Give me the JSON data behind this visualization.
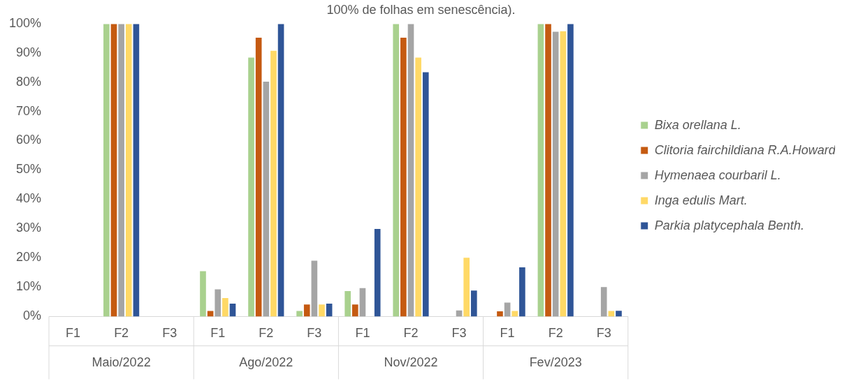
{
  "chart_data": {
    "type": "bar",
    "title": "100% de folhas em senescência).",
    "categories": [
      "F1",
      "F2",
      "F3",
      "F1",
      "F2",
      "F3",
      "F1",
      "F2",
      "F3",
      "F1",
      "F2",
      "F3"
    ],
    "annotations": [
      "Maio/2022",
      "Ago/2022",
      "Nov/2022",
      "Fev/2023"
    ],
    "series": [
      {
        "name": "Bixa orellana L.",
        "color": "#a9d18e",
        "values": [
          0,
          100,
          0,
          15.7,
          88.6,
          2.1,
          8.9,
          100,
          0,
          0,
          100,
          0
        ]
      },
      {
        "name": "Clitoria fairchildiana R.A.Howard",
        "color": "#c55a11",
        "values": [
          0,
          100,
          0,
          2.1,
          95.4,
          4.3,
          4.3,
          95.4,
          0,
          2.0,
          100,
          0
        ]
      },
      {
        "name": "Hymenaea courbaril L.",
        "color": "#a5a5a5",
        "values": [
          0,
          100,
          0,
          9.5,
          80.4,
          19.3,
          9.9,
          100,
          2.3,
          5.0,
          97.4,
          10.3
        ]
      },
      {
        "name": "Inga edulis Mart.",
        "color": "#ffd966",
        "values": [
          0,
          100,
          0,
          6.5,
          90.9,
          4.3,
          0,
          88.6,
          20.3,
          2.1,
          97.6,
          2.1
        ]
      },
      {
        "name": "Parkia platycephala Benth.",
        "color": "#2f5597",
        "values": [
          0,
          100,
          0,
          4.6,
          100,
          4.6,
          30.1,
          83.6,
          9.1,
          17.0,
          100,
          2.2
        ]
      }
    ],
    "ylim": [
      0,
      100
    ],
    "yticks": [
      {
        "value": 0,
        "label": "0%"
      },
      {
        "value": 10,
        "label": "10%"
      },
      {
        "value": 20,
        "label": "20%"
      },
      {
        "value": 30,
        "label": "30%"
      },
      {
        "value": 40,
        "label": "40%"
      },
      {
        "value": 50,
        "label": "50%"
      },
      {
        "value": 60,
        "label": "60%"
      },
      {
        "value": 70,
        "label": "70%"
      },
      {
        "value": 80,
        "label": "80%"
      },
      {
        "value": 90,
        "label": "90%"
      },
      {
        "value": 100,
        "label": "100%"
      }
    ],
    "grid": false,
    "legend": "right"
  }
}
